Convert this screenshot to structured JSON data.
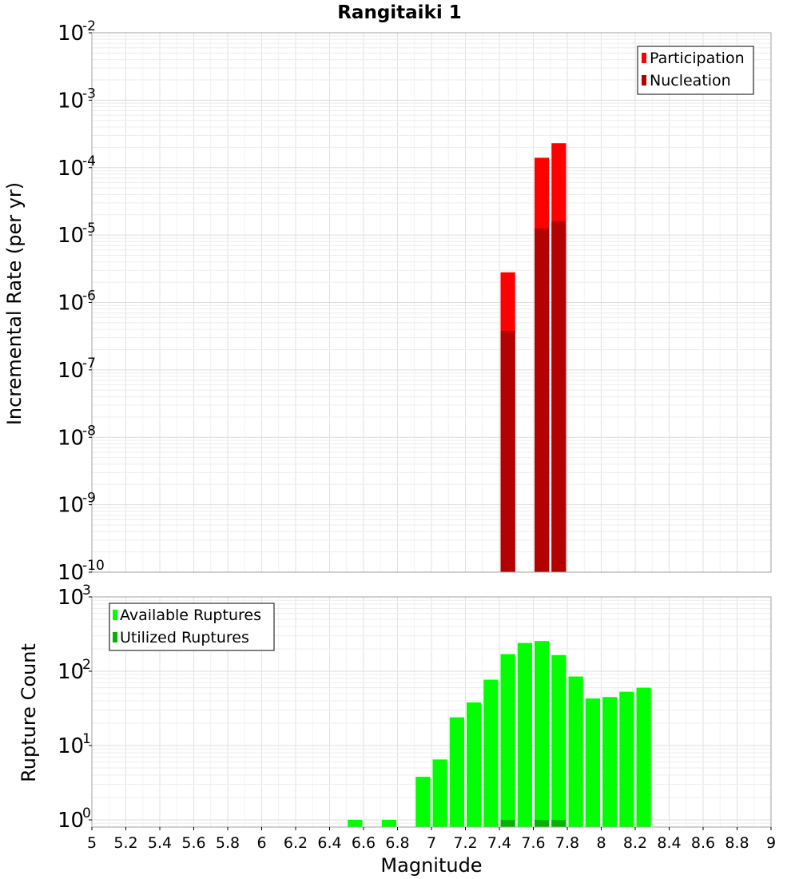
{
  "chart_data": [
    {
      "type": "bar",
      "title": "Rangitaiki 1",
      "xlabel": "",
      "ylabel": "Incremental Rate (per yr)",
      "yscale": "log",
      "xlim": [
        5,
        9
      ],
      "ylim": [
        1e-10,
        0.01
      ],
      "y_ticks": [
        {
          "base": "10",
          "exp": "-10"
        },
        {
          "base": "10",
          "exp": "-9"
        },
        {
          "base": "10",
          "exp": "-8"
        },
        {
          "base": "10",
          "exp": "-7"
        },
        {
          "base": "10",
          "exp": "-6"
        },
        {
          "base": "10",
          "exp": "-5"
        },
        {
          "base": "10",
          "exp": "-4"
        },
        {
          "base": "10",
          "exp": "-3"
        },
        {
          "base": "10",
          "exp": "-2"
        }
      ],
      "grid": true,
      "legend_position": "top-right",
      "series": [
        {
          "name": "Participation",
          "color": "#ff0000",
          "points": [
            [
              7.45,
              2.8e-06
            ],
            [
              7.65,
              0.00014
            ],
            [
              7.75,
              0.00023
            ]
          ]
        },
        {
          "name": "Nucleation",
          "color": "#b30000",
          "points": [
            [
              7.45,
              3.8e-07
            ],
            [
              7.65,
              1.25e-05
            ],
            [
              7.75,
              1.6e-05
            ]
          ]
        }
      ]
    },
    {
      "type": "bar",
      "title": "",
      "xlabel": "Magnitude",
      "ylabel": "Rupture Count",
      "yscale": "log",
      "xlim": [
        5,
        9
      ],
      "ylim": [
        0.8,
        1000
      ],
      "x_ticks": [
        "5",
        "5.2",
        "5.4",
        "5.6",
        "5.8",
        "6",
        "6.2",
        "6.4",
        "6.6",
        "6.8",
        "7",
        "7.2",
        "7.4",
        "7.6",
        "7.8",
        "8",
        "8.2",
        "8.4",
        "8.6",
        "8.8",
        "9"
      ],
      "y_ticks": [
        {
          "base": "10",
          "exp": "0"
        },
        {
          "base": "10",
          "exp": "1"
        },
        {
          "base": "10",
          "exp": "2"
        },
        {
          "base": "10",
          "exp": "3"
        }
      ],
      "grid": true,
      "legend_position": "top-left",
      "series": [
        {
          "name": "Available Ruptures",
          "color": "#00ff00",
          "points": [
            [
              6.55,
              1
            ],
            [
              6.75,
              1
            ],
            [
              6.95,
              3.8
            ],
            [
              7.05,
              6.5
            ],
            [
              7.15,
              24
            ],
            [
              7.25,
              38
            ],
            [
              7.35,
              77
            ],
            [
              7.45,
              170
            ],
            [
              7.55,
              240
            ],
            [
              7.65,
              255
            ],
            [
              7.75,
              165
            ],
            [
              7.85,
              85
            ],
            [
              7.95,
              43
            ],
            [
              8.05,
              45
            ],
            [
              8.15,
              53
            ],
            [
              8.25,
              60
            ]
          ]
        },
        {
          "name": "Utilized Ruptures",
          "color": "#00b300",
          "points": [
            [
              7.45,
              1
            ],
            [
              7.65,
              1
            ],
            [
              7.75,
              1
            ]
          ]
        }
      ]
    }
  ]
}
